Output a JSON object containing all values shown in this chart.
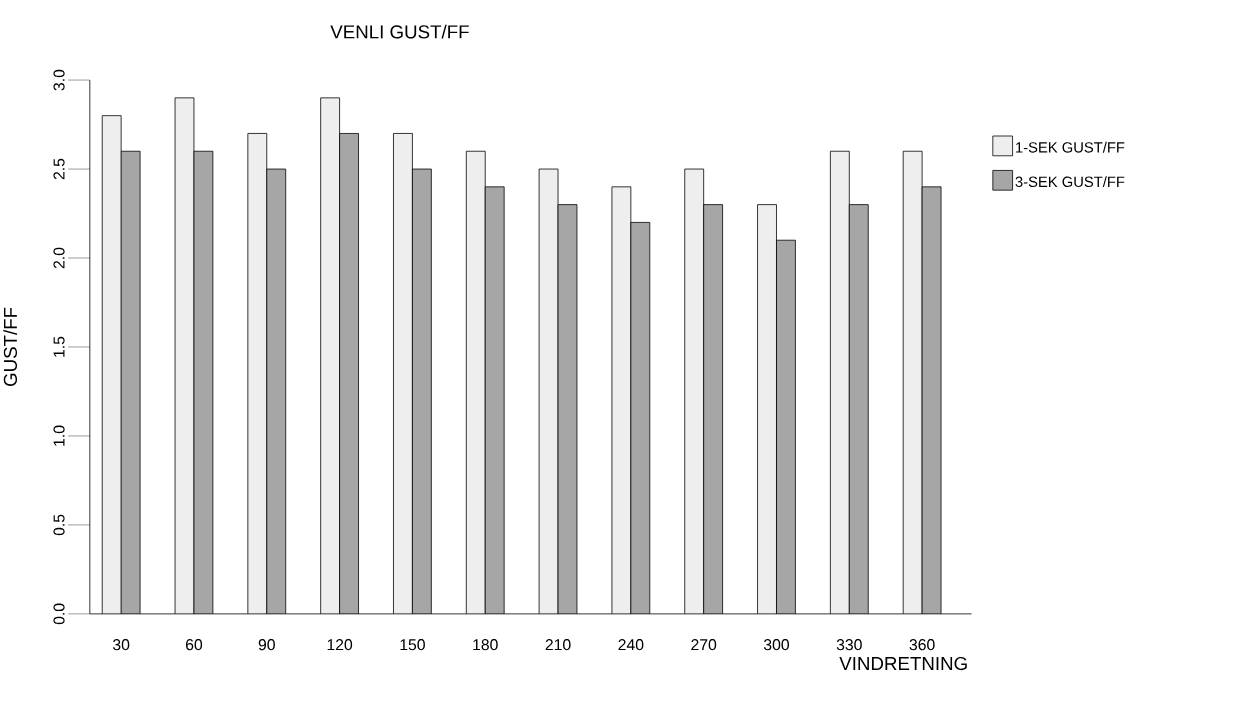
{
  "chart_data": {
    "type": "bar",
    "title": "VENLI GUST/FF",
    "xlabel": "VINDRETNING",
    "ylabel": "GUST/FF",
    "categories": [
      "30",
      "60",
      "90",
      "120",
      "150",
      "180",
      "210",
      "240",
      "270",
      "300",
      "330",
      "360"
    ],
    "series": [
      {
        "name": "1-SEK GUST/FF",
        "color": "#eeeeee",
        "values": [
          2.8,
          2.9,
          2.7,
          2.9,
          2.7,
          2.6,
          2.5,
          2.4,
          2.5,
          2.3,
          2.6,
          2.6
        ]
      },
      {
        "name": "3-SEK GUST/FF",
        "color": "#a6a6a6",
        "values": [
          2.6,
          2.6,
          2.5,
          2.7,
          2.5,
          2.4,
          2.3,
          2.2,
          2.3,
          2.1,
          2.3,
          2.4
        ]
      }
    ],
    "ylim": [
      0,
      3
    ],
    "yticks": [
      {
        "value": 0,
        "label": "0.0"
      },
      {
        "value": 0.5,
        "label": "0.5"
      },
      {
        "value": 1,
        "label": "1.0"
      },
      {
        "value": 1.5,
        "label": "1.5"
      },
      {
        "value": 2,
        "label": "2.0"
      },
      {
        "value": 2.5,
        "label": "2.5"
      },
      {
        "value": 3,
        "label": "3.0"
      }
    ],
    "legend": "right",
    "grid": false
  }
}
